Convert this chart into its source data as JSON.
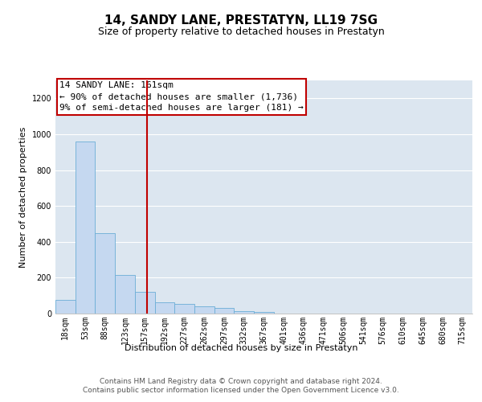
{
  "title": "14, SANDY LANE, PRESTATYN, LL19 7SG",
  "subtitle": "Size of property relative to detached houses in Prestatyn",
  "xlabel": "Distribution of detached houses by size in Prestatyn",
  "ylabel": "Number of detached properties",
  "bar_labels": [
    "18sqm",
    "53sqm",
    "88sqm",
    "123sqm",
    "157sqm",
    "192sqm",
    "227sqm",
    "262sqm",
    "297sqm",
    "332sqm",
    "367sqm",
    "401sqm",
    "436sqm",
    "471sqm",
    "506sqm",
    "541sqm",
    "576sqm",
    "610sqm",
    "645sqm",
    "680sqm",
    "715sqm"
  ],
  "bar_values": [
    75,
    960,
    450,
    215,
    120,
    65,
    55,
    40,
    30,
    15,
    8,
    0,
    0,
    0,
    0,
    0,
    0,
    0,
    0,
    0,
    0
  ],
  "bar_color": "#c5d8f0",
  "bar_edge_color": "#6baed6",
  "vline_color": "#c00000",
  "annotation_box_text": "14 SANDY LANE: 161sqm\n← 90% of detached houses are smaller (1,736)\n9% of semi-detached houses are larger (181) →",
  "annotation_box_color": "#c00000",
  "ylim": [
    0,
    1300
  ],
  "yticks": [
    0,
    200,
    400,
    600,
    800,
    1000,
    1200
  ],
  "background_color": "#dce6f0",
  "footer_text": "Contains HM Land Registry data © Crown copyright and database right 2024.\nContains public sector information licensed under the Open Government Licence v3.0.",
  "title_fontsize": 11,
  "subtitle_fontsize": 9,
  "label_fontsize": 8,
  "tick_fontsize": 7,
  "footer_fontsize": 6.5,
  "ann_fontsize": 8
}
